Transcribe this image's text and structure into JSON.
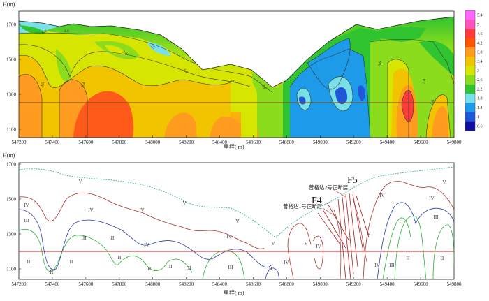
{
  "top_panel": {
    "y_axis_title": "H(m)",
    "x_axis_title": "里程( m)",
    "y_ticks": [
      "1700",
      "1500",
      "1300",
      "1100"
    ],
    "x_ticks": [
      "547200",
      "547400",
      "547600",
      "547800",
      "548000",
      "548200",
      "548400",
      "548600",
      "548800",
      "549000",
      "549200",
      "549400",
      "549600",
      "549800"
    ],
    "contour_labels": [
      "2.6",
      "2.6",
      "3.6",
      "3.4",
      "3.6",
      "3.6",
      "3.4",
      "3.6",
      "3.6",
      "3.6",
      "3.4",
      "3.6"
    ],
    "colorbar": {
      "labels": [
        "5.4",
        "5",
        "4.6",
        "4.2",
        "3.8",
        "3.4",
        "3",
        "2.6",
        "2.2",
        "1.8",
        "1.4",
        "1",
        "0.6"
      ],
      "colors": [
        "#ff66ff",
        "#ff55bb",
        "#ff3b3b",
        "#ff5500",
        "#ff9b1f",
        "#f2c400",
        "#d6e600",
        "#8cdc1e",
        "#30c430",
        "#7ae0e8",
        "#1d9be8",
        "#1f57d6",
        "#1010a0"
      ]
    }
  },
  "bottom_panel": {
    "y_axis_title": "H(m)",
    "x_axis_title": "里程( m)",
    "y_ticks": [
      "1700",
      "1500",
      "1300",
      "1100"
    ],
    "x_ticks": [
      "547200",
      "547400",
      "547600",
      "547800",
      "548000",
      "548200",
      "548400",
      "548600",
      "548800",
      "549000",
      "549200",
      "549400",
      "549600",
      "549800"
    ],
    "faults": [
      {
        "label": "F5",
        "desc": "普格达2号正断层"
      },
      {
        "label": "F4",
        "desc": "普格达1号正断层"
      }
    ],
    "zone_labels": [
      {
        "t": "V",
        "x": 115,
        "y": 262
      },
      {
        "t": "IV",
        "x": 38,
        "y": 296
      },
      {
        "t": "IV",
        "x": 130,
        "y": 303
      },
      {
        "t": "III",
        "x": 38,
        "y": 318
      },
      {
        "t": "V",
        "x": 264,
        "y": 293
      },
      {
        "t": "IV",
        "x": 203,
        "y": 303
      },
      {
        "t": "III",
        "x": 120,
        "y": 343
      },
      {
        "t": "II",
        "x": 161,
        "y": 343
      },
      {
        "t": "V",
        "x": 340,
        "y": 319
      },
      {
        "t": "IV",
        "x": 210,
        "y": 353
      },
      {
        "t": "IV",
        "x": 328,
        "y": 341
      },
      {
        "t": "V",
        "x": 391,
        "y": 351
      },
      {
        "t": "V",
        "x": 438,
        "y": 351
      },
      {
        "t": "IV",
        "x": 456,
        "y": 355
      },
      {
        "t": "V",
        "x": 528,
        "y": 337
      },
      {
        "t": "IV",
        "x": 547,
        "y": 282
      },
      {
        "t": "V",
        "x": 636,
        "y": 263
      },
      {
        "t": "IV",
        "x": 618,
        "y": 286
      },
      {
        "t": "III",
        "x": 624,
        "y": 313
      },
      {
        "t": "II",
        "x": 41,
        "y": 377
      },
      {
        "t": "II",
        "x": 102,
        "y": 377
      },
      {
        "t": "II",
        "x": 171,
        "y": 371
      },
      {
        "t": "III",
        "x": 75,
        "y": 392
      },
      {
        "t": "III",
        "x": 215,
        "y": 387
      },
      {
        "t": "III",
        "x": 243,
        "y": 384
      },
      {
        "t": "III",
        "x": 270,
        "y": 386
      },
      {
        "t": "III",
        "x": 330,
        "y": 385
      },
      {
        "t": "III",
        "x": 386,
        "y": 387
      },
      {
        "t": "IV",
        "x": 410,
        "y": 378
      },
      {
        "t": "IV",
        "x": 540,
        "y": 382
      },
      {
        "t": "III",
        "x": 561,
        "y": 382
      },
      {
        "t": "II",
        "x": 584,
        "y": 372
      },
      {
        "t": "II",
        "x": 633,
        "y": 372
      }
    ]
  }
}
